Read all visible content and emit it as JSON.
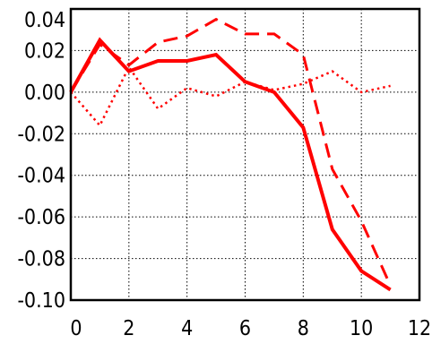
{
  "chart_data": {
    "type": "line",
    "title": "",
    "xlabel": "",
    "ylabel": "",
    "xlim": [
      0,
      12
    ],
    "ylim": [
      -0.1,
      0.04
    ],
    "grid": true,
    "x_ticks": [
      0,
      2,
      4,
      6,
      8,
      10,
      12
    ],
    "x_tick_labels": [
      "0",
      "2",
      "4",
      "6",
      "8",
      "10",
      "12"
    ],
    "y_ticks": [
      0.04,
      0.02,
      0.0,
      -0.02,
      -0.04,
      -0.06,
      -0.08,
      -0.1
    ],
    "y_tick_labels": [
      "0.04",
      "0.02",
      "0.00",
      "-0.02",
      "-0.04",
      "-0.06",
      "-0.08",
      "-0.10"
    ],
    "series": [
      {
        "style": "solid",
        "color": "#ff0000",
        "x": [
          0,
          1,
          2,
          3,
          4,
          5,
          6,
          7,
          8,
          9,
          10,
          11
        ],
        "values": [
          0.0,
          0.025,
          0.01,
          0.015,
          0.015,
          0.018,
          0.005,
          0.0,
          -0.017,
          -0.066,
          -0.086,
          -0.095
        ]
      },
      {
        "style": "dashed",
        "color": "#ff0000",
        "x": [
          0,
          1,
          2,
          3,
          4,
          5,
          6,
          7,
          8,
          9,
          10,
          11
        ],
        "values": [
          0.0,
          0.023,
          0.013,
          0.024,
          0.027,
          0.035,
          0.028,
          0.028,
          0.018,
          -0.037,
          -0.062,
          -0.093
        ]
      },
      {
        "style": "dotted",
        "color": "#ff0000",
        "x": [
          0,
          1,
          2,
          3,
          4,
          5,
          6,
          7,
          8,
          9,
          10,
          11
        ],
        "values": [
          0.0,
          -0.016,
          0.012,
          -0.008,
          0.002,
          -0.002,
          0.005,
          0.001,
          0.004,
          0.01,
          0.0,
          0.003
        ]
      }
    ]
  }
}
